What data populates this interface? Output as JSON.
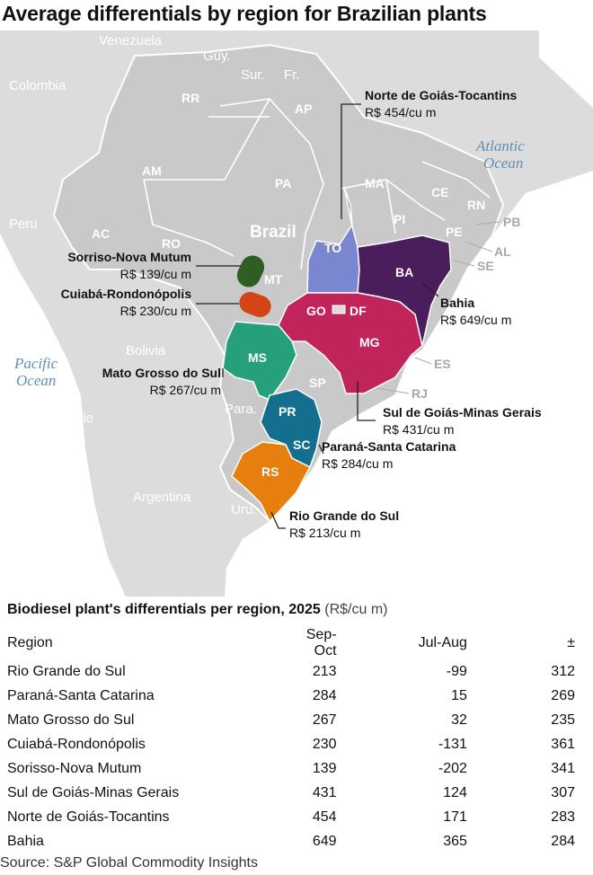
{
  "title": "Average differentials by region for Brazilian plants",
  "map": {
    "countries": [
      "Venezuela",
      "Guy.",
      "Sur.",
      "Fr.",
      "Colombia",
      "Peru",
      "Bolivia",
      "Chile",
      "Para.",
      "Argentina",
      "Uru.",
      "Brazil"
    ],
    "oceans": [
      "Atlantic",
      "Ocean",
      "Pacific",
      "Ocean"
    ],
    "states": [
      "RR",
      "AP",
      "AM",
      "PA",
      "MA",
      "CE",
      "RN",
      "PB",
      "PE",
      "AL",
      "SE",
      "PI",
      "AC",
      "RO",
      "TO",
      "BA",
      "MT",
      "GO",
      "DF",
      "MG",
      "ES",
      "RJ",
      "SP",
      "MS",
      "PR",
      "SC",
      "RS"
    ],
    "colors": {
      "land": "#dcdcdc",
      "brazil": "#c9c9c9",
      "border": "#ffffff",
      "norte_goias_tocantins": "#7a86cf",
      "bahia": "#4a1d5c",
      "sul_goias_minas": "#c0245a",
      "mato_grosso_sul": "#25a07a",
      "parana_santa_catarina": "#136f8d",
      "rio_grande_do_sul": "#e67f0d",
      "sorriso": "#2f5e23",
      "cuiaba": "#d34416",
      "ocean_text": "#5f8fb6"
    },
    "callouts": {
      "norte_goias_tocantins": {
        "name": "Norte de Goiás-Tocantins",
        "value": "R$ 454/cu m"
      },
      "bahia": {
        "name": "Bahia",
        "value": "R$ 649/cu m"
      },
      "sorriso": {
        "name": "Sorriso-Nova Mutum",
        "value": "R$ 139/cu m"
      },
      "cuiaba": {
        "name": "Cuiabá-Rondonópolis",
        "value": "R$ 230/cu m"
      },
      "mato_grosso_sul": {
        "name": "Mato Grosso do Sul",
        "value": "R$ 267/cu m"
      },
      "sul_goias_minas": {
        "name": "Sul de Goiás-Minas Gerais",
        "value": "R$ 431/cu m"
      },
      "parana_santa_catarina": {
        "name": "Paraná-Santa Catarina",
        "value": "R$ 284/cu m"
      },
      "rio_grande_do_sul": {
        "name": "Rio Grande do Sul",
        "value": "R$ 213/cu m"
      }
    }
  },
  "table": {
    "title": "Biodiesel plant's differentials per region, 2025",
    "unit": "(R$/cu m)",
    "headers": [
      "Region",
      "Sep-Oct",
      "Jul-Aug",
      "±"
    ],
    "rows": [
      [
        "Rio Grande do Sul",
        "213",
        "-99",
        "312"
      ],
      [
        "Paraná-Santa Catarina",
        "284",
        "15",
        "269"
      ],
      [
        "Mato Grosso do Sul",
        "267",
        "32",
        "235"
      ],
      [
        "Cuiabá-Rondonópolis",
        "230",
        "-131",
        "361"
      ],
      [
        "Sorisso-Nova Mutum",
        "139",
        "-202",
        "341"
      ],
      [
        "Sul de Goiás-Minas Gerais",
        "431",
        "124",
        "307"
      ],
      [
        "Norte de Goiás-Tocantins",
        "454",
        "171",
        "283"
      ],
      [
        "Bahia",
        "649",
        "365",
        "284"
      ]
    ]
  },
  "source": "Source: S&P Global Commodity Insights"
}
